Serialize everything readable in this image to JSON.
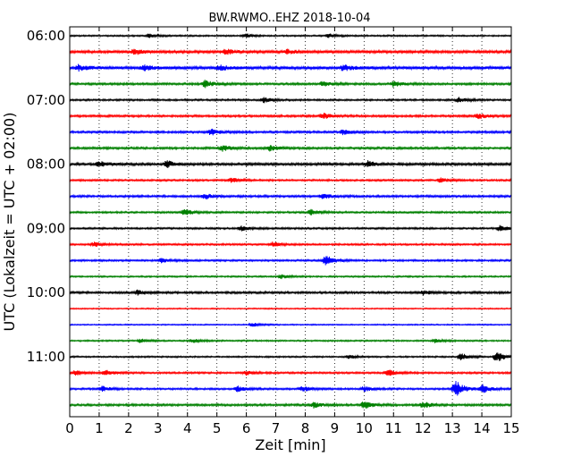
{
  "chart_data": {
    "type": "line",
    "subtype": "helicorder-seismogram",
    "title": "BW.RWMO..EHZ 2018-10-04",
    "xlabel": "Zeit  [min]",
    "ylabel": "UTC (Lokalzeit = UTC + 02:00)",
    "xlim": [
      0,
      15
    ],
    "x_ticks": [
      "0",
      "1",
      "2",
      "3",
      "4",
      "5",
      "6",
      "7",
      "8",
      "9",
      "10",
      "11",
      "12",
      "13",
      "14",
      "15"
    ],
    "y_ticks": [
      "06:00",
      "07:00",
      "08:00",
      "09:00",
      "10:00",
      "11:00"
    ],
    "trace_interval_min": 15,
    "grid": "vertical dotted lines at each minute",
    "colors": [
      "#000000",
      "#ff0000",
      "#0000ff",
      "#008000"
    ],
    "rows": [
      {
        "start": "06:00",
        "color": "#000000",
        "amp": 0.25,
        "events": [
          {
            "t": 2.7,
            "a": 0.3
          },
          {
            "t": 6.0,
            "a": 0.3
          },
          {
            "t": 8.8,
            "a": 0.3
          }
        ]
      },
      {
        "start": "06:15",
        "color": "#ff0000",
        "amp": 0.45,
        "events": [
          {
            "t": 2.2,
            "a": 0.45
          },
          {
            "t": 5.3,
            "a": 0.4
          },
          {
            "t": 7.4,
            "a": 0.35
          }
        ]
      },
      {
        "start": "06:30",
        "color": "#0000ff",
        "amp": 0.5,
        "events": [
          {
            "t": 0.3,
            "a": 0.45
          },
          {
            "t": 2.5,
            "a": 0.4
          },
          {
            "t": 5.1,
            "a": 0.4
          },
          {
            "t": 9.3,
            "a": 0.45
          }
        ]
      },
      {
        "start": "06:45",
        "color": "#008000",
        "amp": 0.35,
        "events": [
          {
            "t": 4.6,
            "a": 0.55
          },
          {
            "t": 8.6,
            "a": 0.4
          },
          {
            "t": 11.0,
            "a": 0.45
          }
        ]
      },
      {
        "start": "07:00",
        "color": "#000000",
        "amp": 0.3,
        "events": [
          {
            "t": 6.6,
            "a": 0.4
          },
          {
            "t": 13.2,
            "a": 0.4
          }
        ]
      },
      {
        "start": "07:15",
        "color": "#ff0000",
        "amp": 0.35,
        "events": [
          {
            "t": 8.6,
            "a": 0.45
          },
          {
            "t": 13.9,
            "a": 0.4
          }
        ]
      },
      {
        "start": "07:30",
        "color": "#0000ff",
        "amp": 0.35,
        "events": [
          {
            "t": 4.8,
            "a": 0.5
          },
          {
            "t": 9.3,
            "a": 0.4
          }
        ]
      },
      {
        "start": "07:45",
        "color": "#008000",
        "amp": 0.35,
        "events": [
          {
            "t": 5.2,
            "a": 0.5
          },
          {
            "t": 6.8,
            "a": 0.4
          }
        ]
      },
      {
        "start": "08:00",
        "color": "#000000",
        "amp": 0.4,
        "events": [
          {
            "t": 1.0,
            "a": 0.45
          },
          {
            "t": 3.3,
            "a": 0.55
          },
          {
            "t": 10.1,
            "a": 0.5
          }
        ]
      },
      {
        "start": "08:15",
        "color": "#ff0000",
        "amp": 0.3,
        "events": [
          {
            "t": 5.5,
            "a": 0.35
          },
          {
            "t": 12.6,
            "a": 0.35
          }
        ]
      },
      {
        "start": "08:30",
        "color": "#0000ff",
        "amp": 0.35,
        "events": [
          {
            "t": 4.6,
            "a": 0.45
          },
          {
            "t": 8.6,
            "a": 0.4
          }
        ]
      },
      {
        "start": "08:45",
        "color": "#008000",
        "amp": 0.3,
        "events": [
          {
            "t": 3.9,
            "a": 0.5
          },
          {
            "t": 8.2,
            "a": 0.4
          }
        ]
      },
      {
        "start": "09:00",
        "color": "#000000",
        "amp": 0.3,
        "events": [
          {
            "t": 5.8,
            "a": 0.4
          },
          {
            "t": 14.6,
            "a": 0.45
          }
        ]
      },
      {
        "start": "09:15",
        "color": "#ff0000",
        "amp": 0.3,
        "events": [
          {
            "t": 0.8,
            "a": 0.35
          },
          {
            "t": 6.9,
            "a": 0.35
          }
        ]
      },
      {
        "start": "09:30",
        "color": "#0000ff",
        "amp": 0.3,
        "events": [
          {
            "t": 8.7,
            "a": 0.8
          },
          {
            "t": 3.1,
            "a": 0.35
          }
        ]
      },
      {
        "start": "09:45",
        "color": "#008000",
        "amp": 0.25,
        "events": [
          {
            "t": 7.2,
            "a": 0.3
          }
        ]
      },
      {
        "start": "10:00",
        "color": "#000000",
        "amp": 0.35,
        "events": [
          {
            "t": 2.3,
            "a": 0.35
          },
          {
            "t": 12.0,
            "a": 0.35
          }
        ]
      },
      {
        "start": "10:15",
        "color": "#ff0000",
        "amp": 0.2,
        "events": []
      },
      {
        "start": "10:30",
        "color": "#0000ff",
        "amp": 0.2,
        "events": [
          {
            "t": 6.2,
            "a": 0.3
          }
        ]
      },
      {
        "start": "10:45",
        "color": "#008000",
        "amp": 0.25,
        "events": [
          {
            "t": 2.4,
            "a": 0.3
          },
          {
            "t": 4.2,
            "a": 0.3
          },
          {
            "t": 12.4,
            "a": 0.3
          }
        ]
      },
      {
        "start": "11:00",
        "color": "#000000",
        "amp": 0.25,
        "events": [
          {
            "t": 9.5,
            "a": 0.35
          },
          {
            "t": 13.3,
            "a": 0.6
          },
          {
            "t": 14.5,
            "a": 0.9
          }
        ]
      },
      {
        "start": "11:15",
        "color": "#ff0000",
        "amp": 0.3,
        "events": [
          {
            "t": 0.2,
            "a": 0.4
          },
          {
            "t": 1.2,
            "a": 0.45
          },
          {
            "t": 10.8,
            "a": 0.5
          },
          {
            "t": 6.0,
            "a": 0.35
          }
        ]
      },
      {
        "start": "11:30",
        "color": "#0000ff",
        "amp": 0.3,
        "events": [
          {
            "t": 1.1,
            "a": 0.4
          },
          {
            "t": 5.7,
            "a": 0.45
          },
          {
            "t": 7.9,
            "a": 0.45
          },
          {
            "t": 10.0,
            "a": 0.4
          },
          {
            "t": 13.1,
            "a": 1.4
          },
          {
            "t": 14.0,
            "a": 0.7
          }
        ]
      },
      {
        "start": "11:45",
        "color": "#008000",
        "amp": 0.35,
        "events": [
          {
            "t": 8.3,
            "a": 0.45
          },
          {
            "t": 10.0,
            "a": 0.6
          },
          {
            "t": 12.0,
            "a": 0.5
          }
        ]
      }
    ]
  }
}
